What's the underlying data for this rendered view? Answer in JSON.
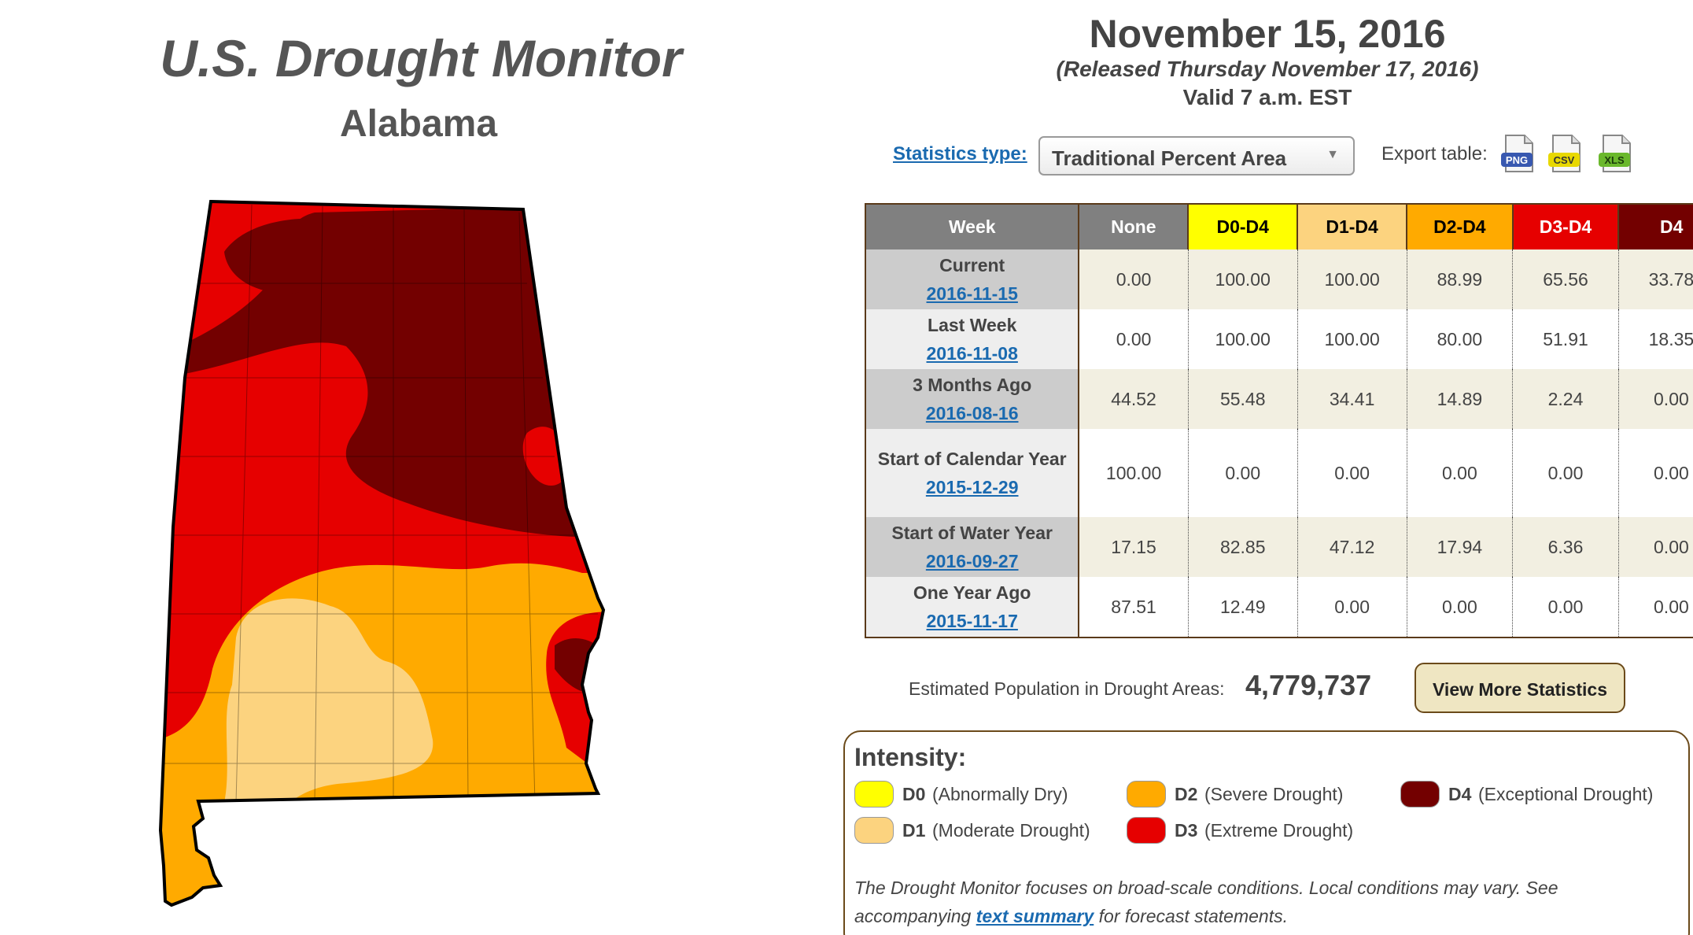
{
  "header": {
    "app_title": "U.S. Drought Monitor",
    "state": "Alabama",
    "map_date": "November 15, 2016",
    "release_date": "(Released Thursday November 17, 2016)",
    "valid_time": "Valid 7 a.m. EST"
  },
  "stats_controls": {
    "stats_type_label": "Statistics type:",
    "stats_type_selected": "Traditional Percent Area",
    "export_label": "Export table:",
    "export_formats": [
      "PNG",
      "CSV",
      "XLS"
    ]
  },
  "table": {
    "headers": [
      "Week",
      "None",
      "D0-D4",
      "D1-D4",
      "D2-D4",
      "D3-D4",
      "D4"
    ],
    "rows": [
      {
        "label": "Current",
        "date": "2016-11-15",
        "values": [
          "0.00",
          "100.00",
          "100.00",
          "88.99",
          "65.56",
          "33.78"
        ]
      },
      {
        "label": "Last Week",
        "date": "2016-11-08",
        "values": [
          "0.00",
          "100.00",
          "100.00",
          "80.00",
          "51.91",
          "18.35"
        ]
      },
      {
        "label": "3 Months Ago",
        "date": "2016-08-16",
        "values": [
          "44.52",
          "55.48",
          "34.41",
          "14.89",
          "2.24",
          "0.00"
        ]
      },
      {
        "label": "Start of Calendar Year",
        "date": "2015-12-29",
        "values": [
          "100.00",
          "0.00",
          "0.00",
          "0.00",
          "0.00",
          "0.00"
        ]
      },
      {
        "label": "Start of Water Year",
        "date": "2016-09-27",
        "values": [
          "17.15",
          "82.85",
          "47.12",
          "17.94",
          "6.36",
          "0.00"
        ]
      },
      {
        "label": "One Year Ago",
        "date": "2015-11-17",
        "values": [
          "87.51",
          "12.49",
          "0.00",
          "0.00",
          "0.00",
          "0.00"
        ]
      }
    ]
  },
  "population": {
    "label": "Estimated Population in Drought Areas:",
    "value": "4,779,737",
    "more_button": "View More Statistics"
  },
  "legend": {
    "title": "Intensity:",
    "items": [
      {
        "level": "D0",
        "desc": "(Abnormally Dry)",
        "color": "#ffff00"
      },
      {
        "level": "D1",
        "desc": "(Moderate Drought)",
        "color": "#fcd37f"
      },
      {
        "level": "D2",
        "desc": "(Severe Drought)",
        "color": "#ffaa00"
      },
      {
        "level": "D3",
        "desc": "(Extreme Drought)",
        "color": "#e60000"
      },
      {
        "level": "D4",
        "desc": "(Exceptional Drought)",
        "color": "#730000"
      }
    ],
    "note_before": "The Drought Monitor focuses on broad-scale conditions. Local conditions may vary. See accompanying",
    "note_link": "text summary",
    "note_after": "for forecast statements."
  }
}
